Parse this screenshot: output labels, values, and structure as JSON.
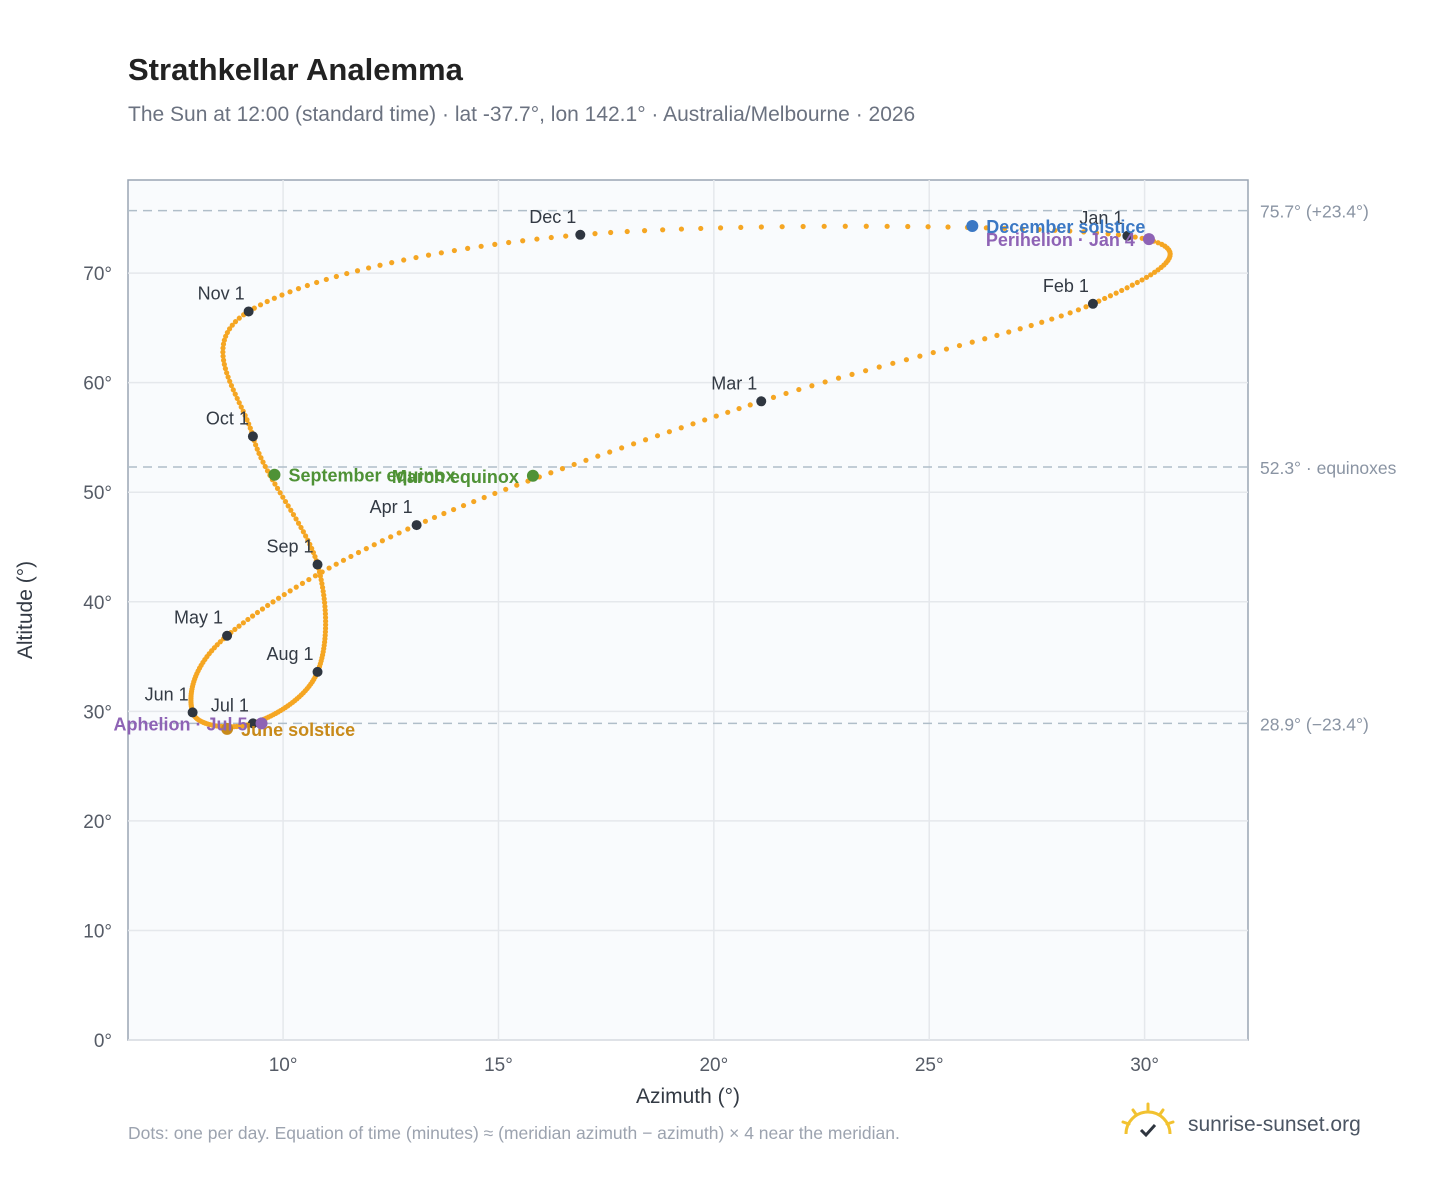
{
  "header": {
    "title": "Strathkellar Analemma",
    "subtitle": "The Sun at 12:00 (standard time) · lat -37.7°, lon 142.1° · Australia/Melbourne · 2026"
  },
  "footer": {
    "note": "Dots: one per day. Equation of time (minutes) ≈ (meridian azimuth − azimuth) × 4 near the meridian.",
    "brand": "sunrise-sunset.org"
  },
  "colors": {
    "curve": "#f5a623",
    "month_marker": "#2f3640",
    "december_solstice": "#3b78c4",
    "june_solstice": "#c88a1a",
    "equinox": "#4f9236",
    "apsis": "#8e63b5",
    "reference_line": "#b0bec9",
    "grid": "#e5e8ec",
    "plot_bg": "#f9fbfd"
  },
  "chart_data": {
    "type": "scatter",
    "title": "Strathkellar Analemma",
    "xlabel": "Azimuth (°)",
    "ylabel": "Altitude (°)",
    "xlim": [
      6.4,
      32.4
    ],
    "ylim": [
      0,
      78.5
    ],
    "x_ticks": [
      10,
      15,
      20,
      25,
      30
    ],
    "y_ticks": [
      0,
      10,
      20,
      30,
      40,
      50,
      60,
      70
    ],
    "x_tick_labels": [
      "10°",
      "15°",
      "20°",
      "25°",
      "30°"
    ],
    "y_tick_labels": [
      "0°",
      "10°",
      "20°",
      "30°",
      "40°",
      "50°",
      "60°",
      "70°"
    ],
    "grid": true,
    "series": [
      {
        "months": [
          {
            "label": "Jan 1",
            "azimuth": 29.6,
            "altitude": 73.4
          },
          {
            "label": "Feb 1",
            "azimuth": 28.8,
            "altitude": 67.2
          },
          {
            "label": "Mar 1",
            "azimuth": 21.1,
            "altitude": 58.3
          },
          {
            "label": "Apr 1",
            "azimuth": 13.1,
            "altitude": 47.0
          },
          {
            "label": "May 1",
            "azimuth": 8.7,
            "altitude": 36.9
          },
          {
            "label": "Jun 1",
            "azimuth": 7.9,
            "altitude": 29.9
          },
          {
            "label": "Jul 1",
            "azimuth": 9.3,
            "altitude": 28.9
          },
          {
            "label": "Aug 1",
            "azimuth": 10.8,
            "altitude": 33.6
          },
          {
            "label": "Sep 1",
            "azimuth": 10.8,
            "altitude": 43.4
          },
          {
            "label": "Oct 1",
            "azimuth": 9.3,
            "altitude": 55.1
          },
          {
            "label": "Nov 1",
            "azimuth": 9.2,
            "altitude": 66.5
          },
          {
            "label": "Dec 1",
            "azimuth": 16.9,
            "altitude": 73.5
          }
        ]
      }
    ],
    "events": [
      {
        "label": "December solstice",
        "azimuth": 26.0,
        "altitude": 74.3,
        "kind": "december_solstice",
        "label_side": "right"
      },
      {
        "label": "June solstice",
        "azimuth": 8.7,
        "altitude": 28.4,
        "kind": "june_solstice",
        "label_side": "right"
      },
      {
        "label": "March equinox",
        "azimuth": 15.8,
        "altitude": 51.5,
        "kind": "equinox",
        "label_side": "left"
      },
      {
        "label": "September equinox",
        "azimuth": 9.8,
        "altitude": 51.6,
        "kind": "equinox",
        "label_side": "right"
      },
      {
        "label": "Perihelion · Jan 4",
        "azimuth": 30.1,
        "altitude": 73.1,
        "kind": "apsis",
        "label_side": "left"
      },
      {
        "label": "Aphelion · Jul 5",
        "azimuth": 9.5,
        "altitude": 28.9,
        "kind": "apsis",
        "label_side": "left"
      }
    ],
    "reference_lines": [
      {
        "altitude": 75.7,
        "label": "75.7° (+23.4°)"
      },
      {
        "altitude": 52.3,
        "label": "52.3° · equinoxes"
      },
      {
        "altitude": 28.9,
        "label": "28.9° (−23.4°)"
      }
    ]
  }
}
